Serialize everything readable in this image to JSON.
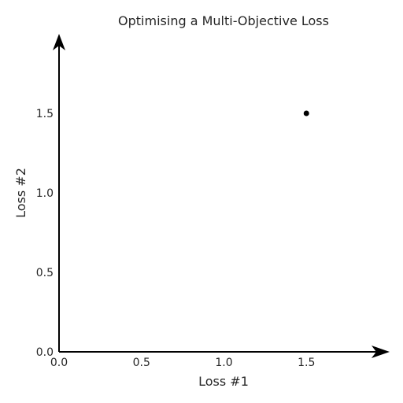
{
  "chart_data": {
    "type": "scatter",
    "title": "Optimising a Multi-Objective Loss",
    "xlabel": "Loss #1",
    "ylabel": "Loss #2",
    "xlim": [
      0.0,
      2.0
    ],
    "ylim": [
      0.0,
      2.0
    ],
    "xticks": [
      0.0,
      0.5,
      1.0,
      1.5
    ],
    "yticks": [
      0.0,
      0.5,
      1.0,
      1.5
    ],
    "xtick_labels": [
      "0.0",
      "0.5",
      "1.0",
      "1.5"
    ],
    "ytick_labels": [
      "0.0",
      "0.5",
      "1.0",
      "1.5"
    ],
    "grid": false,
    "axis_arrows": true,
    "marker_color": "#000000",
    "points": [
      {
        "x": 1.5,
        "y": 1.5
      }
    ]
  }
}
